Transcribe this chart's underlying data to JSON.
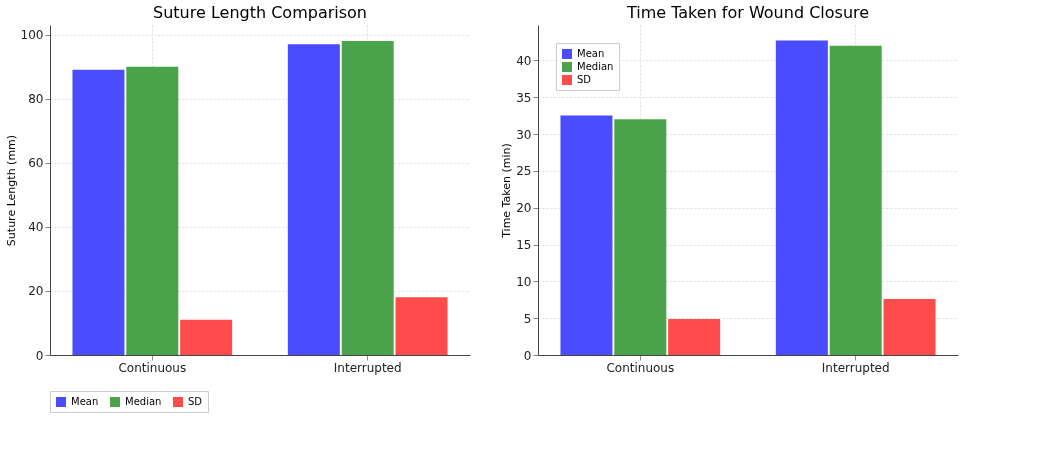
{
  "chart_data": [
    {
      "type": "bar",
      "title": "Suture Length Comparison",
      "ylabel": "Suture Length (mm)",
      "categories": [
        "Continuous",
        "Interrupted"
      ],
      "series": [
        {
          "name": "Mean",
          "color": "#4b4bff",
          "values": [
            89,
            97
          ]
        },
        {
          "name": "Median",
          "color": "#4ba34b",
          "values": [
            90,
            98
          ]
        },
        {
          "name": "SD",
          "color": "#ff4b4b",
          "values": [
            11,
            18
          ]
        }
      ],
      "ylim": [
        0,
        103
      ],
      "yticks": [
        0,
        20,
        40,
        60,
        80,
        100
      ],
      "grid": true,
      "legend": "bottom"
    },
    {
      "type": "bar",
      "title": "Time Taken for Wound Closure",
      "ylabel": "Time Taken (min)",
      "categories": [
        "Continuous",
        "Interrupted"
      ],
      "series": [
        {
          "name": "Mean",
          "color": "#4b4bff",
          "values": [
            32.5,
            42.7
          ]
        },
        {
          "name": "Median",
          "color": "#4ba34b",
          "values": [
            32,
            42
          ]
        },
        {
          "name": "SD",
          "color": "#ff4b4b",
          "values": [
            4.9,
            7.6
          ]
        }
      ],
      "ylim": [
        0,
        44.8
      ],
      "yticks": [
        0,
        5,
        10,
        15,
        20,
        25,
        30,
        35,
        40
      ],
      "grid": true,
      "legend": "top left"
    }
  ]
}
